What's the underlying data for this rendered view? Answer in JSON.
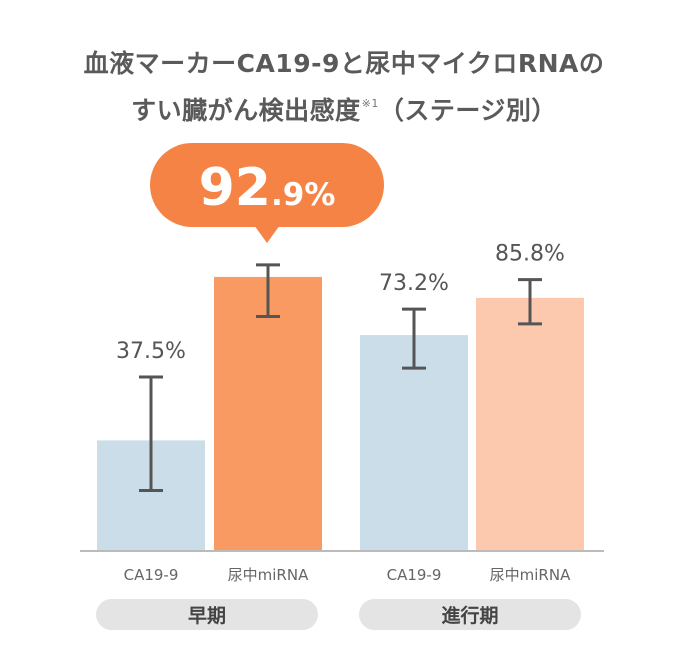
{
  "title_line1": "血液マーカーCA19-9と尿中マイクロRNAの",
  "title_line2": "すい臓がん検出感度",
  "title_note": "※1",
  "title_suffix": "（ステージ別）",
  "highlight": {
    "integer": "92",
    "decimal": ".9%",
    "color": "#F58345"
  },
  "colors": {
    "ca199": "#CCDDEA",
    "mirna_early": "#F89A62",
    "mirna_advanced": "#FCC9AE",
    "error": "#555555",
    "axis": "#BBBBBB",
    "group_pill": "#E4E4E4"
  },
  "chart_data": {
    "type": "bar",
    "title": "血液マーカーCA19-9と尿中マイクロRNAのすい臓がん検出感度※1（ステージ別）",
    "ylim": [
      0,
      100
    ],
    "groups": [
      {
        "name": "早期",
        "bars": [
          {
            "label": "CA19-9",
            "value": 37.5,
            "display": "37.5%",
            "err_low": 20.5,
            "err_high": 59.0
          },
          {
            "label": "尿中miRNA",
            "value": 92.9,
            "display": "92.9%",
            "err_low": 79.5,
            "err_high": 97.0
          }
        ]
      },
      {
        "name": "進行期",
        "bars": [
          {
            "label": "CA19-9",
            "value": 73.2,
            "display": "73.2%",
            "err_low": 62.0,
            "err_high": 82.0
          },
          {
            "label": "尿中miRNA",
            "value": 85.8,
            "display": "85.8%",
            "err_low": 77.0,
            "err_high": 92.0
          }
        ]
      }
    ]
  }
}
